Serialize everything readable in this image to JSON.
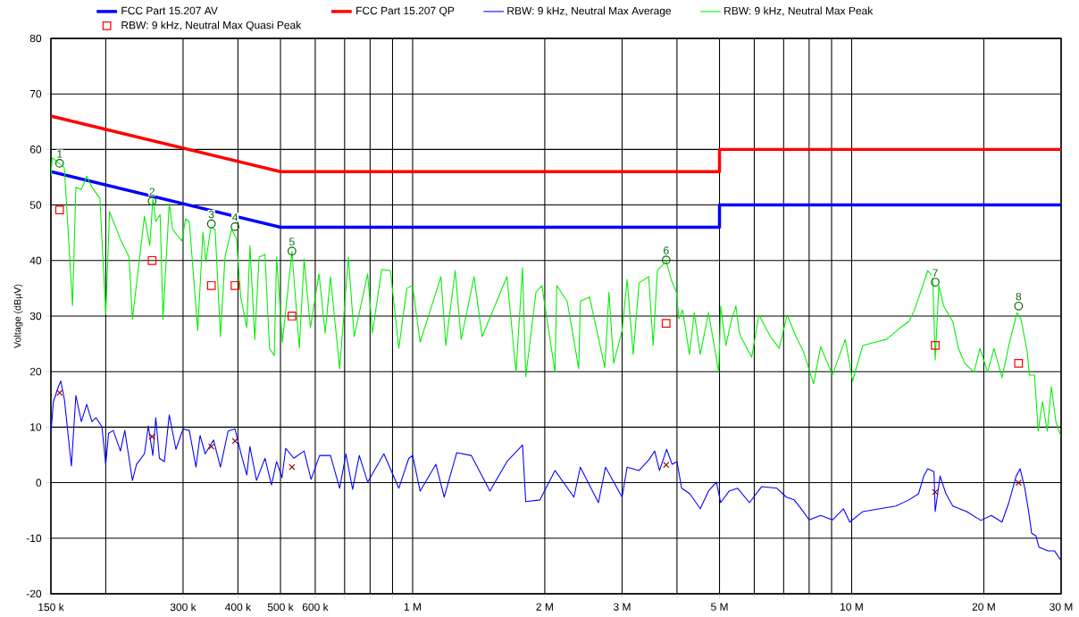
{
  "chart_data": {
    "type": "line",
    "ylabel": "Voltage (dBµV)",
    "log": "x",
    "grid": true,
    "legend": "top left",
    "xlim": [
      0.15,
      30
    ],
    "ylim": [
      -20,
      80
    ],
    "xticks": [
      {
        "value": 0.15,
        "label": "150 k"
      },
      {
        "value": 0.2,
        "label": null
      },
      {
        "value": 0.3,
        "label": "300 k"
      },
      {
        "value": 0.4,
        "label": "400 k"
      },
      {
        "value": 0.5,
        "label": "500 k"
      },
      {
        "value": 0.6,
        "label": "600 k"
      },
      {
        "value": 0.7,
        "label": null
      },
      {
        "value": 0.8,
        "label": null
      },
      {
        "value": 0.9,
        "label": null
      },
      {
        "value": 1,
        "label": "1 M"
      },
      {
        "value": 2,
        "label": "2 M"
      },
      {
        "value": 3,
        "label": "3 M"
      },
      {
        "value": 4,
        "label": null
      },
      {
        "value": 5,
        "label": "5 M"
      },
      {
        "value": 6,
        "label": null
      },
      {
        "value": 7,
        "label": null
      },
      {
        "value": 8,
        "label": null
      },
      {
        "value": 9,
        "label": null
      },
      {
        "value": 10,
        "label": "10 M"
      },
      {
        "value": 20,
        "label": "20 M"
      },
      {
        "value": 30,
        "label": "30 M"
      }
    ],
    "yticks": [
      -20,
      -10,
      0,
      10,
      20,
      30,
      40,
      50,
      60,
      70,
      80
    ],
    "series": [
      {
        "name": "FCC Part 15.207 AV",
        "color": "#0000ff",
        "x": [
          0.15,
          0.5,
          5,
          5,
          30
        ],
        "values": [
          56,
          46,
          46,
          50,
          50
        ]
      },
      {
        "name": "FCC Part 15.207 QP",
        "color": "#ff0000",
        "x": [
          0.15,
          0.5,
          5,
          5,
          30
        ],
        "values": [
          66,
          56,
          56,
          60,
          60
        ]
      },
      {
        "name": "RBW: 9 kHz, Neutral Max Average",
        "color": "#0000ff",
        "x": [
          0.15,
          0.152,
          0.156,
          0.158,
          0.161,
          0.167,
          0.171,
          0.176,
          0.181,
          0.186,
          0.19,
          0.196,
          0.2,
          0.203,
          0.208,
          0.216,
          0.221,
          0.23,
          0.235,
          0.245,
          0.25,
          0.256,
          0.26,
          0.265,
          0.272,
          0.279,
          0.289,
          0.3,
          0.31,
          0.321,
          0.328,
          0.337,
          0.352,
          0.365,
          0.38,
          0.394,
          0.406,
          0.419,
          0.426,
          0.441,
          0.461,
          0.477,
          0.49,
          0.504,
          0.514,
          0.536,
          0.566,
          0.587,
          0.614,
          0.65,
          0.682,
          0.705,
          0.73,
          0.756,
          0.79,
          0.86,
          0.93,
          0.98,
          1.0,
          1.04,
          1.13,
          1.18,
          1.26,
          1.36,
          1.5,
          1.64,
          1.78,
          1.81,
          1.95,
          2.11,
          2.33,
          2.41,
          2.65,
          2.75,
          3.0,
          3.08,
          3.28,
          3.45,
          3.56,
          3.65,
          3.79,
          3.9,
          4.0,
          4.1,
          4.28,
          4.52,
          4.72,
          4.92,
          5.03,
          5.26,
          5.5,
          5.85,
          6.24,
          6.76,
          7.1,
          7.4,
          7.76,
          8.0,
          8.5,
          9.04,
          9.58,
          9.9,
          10.6,
          11.6,
          12.6,
          13.5,
          14.2,
          14.6,
          14.9,
          15.4,
          15.5,
          15.9,
          16.4,
          17.0,
          18.3,
          19.7,
          20.8,
          22.0,
          22.8,
          23.7,
          24.2,
          24.8,
          25.3,
          25.7,
          26.3,
          26.7,
          28.0,
          29.0,
          29.9
        ],
        "values": [
          8.9,
          14.6,
          17.3,
          18.3,
          15.0,
          3.0,
          15.7,
          11.0,
          14.1,
          11.0,
          11.7,
          10.1,
          3.3,
          8.9,
          9.4,
          5.7,
          9.4,
          0.4,
          3.3,
          5.2,
          10.2,
          4.9,
          11.7,
          4.4,
          3.8,
          12.2,
          6.0,
          9.7,
          9.4,
          2.8,
          8.5,
          5.2,
          7.7,
          2.8,
          9.3,
          9.7,
          5.4,
          1.4,
          6.5,
          0.4,
          4.4,
          -0.4,
          3.8,
          0.9,
          6.2,
          4.4,
          5.7,
          0.6,
          4.9,
          4.9,
          -1.0,
          5.2,
          -1.2,
          4.9,
          0.1,
          5.2,
          -1.0,
          4.4,
          4.9,
          -1.5,
          3.3,
          -2.6,
          5.4,
          4.9,
          -1.5,
          3.8,
          6.8,
          -3.4,
          -3.1,
          2.2,
          -2.6,
          2.8,
          -3.6,
          2.8,
          -2.6,
          2.8,
          2.2,
          4.1,
          5.7,
          2.2,
          6.0,
          3.3,
          3.8,
          -1.0,
          -2.0,
          -4.7,
          -1.5,
          0.1,
          -3.6,
          -1.5,
          -1.0,
          -3.6,
          -0.7,
          -1.0,
          -2.6,
          -3.1,
          -5.2,
          -6.7,
          -5.9,
          -6.7,
          -4.7,
          -7.1,
          -5.2,
          -4.7,
          -4.2,
          -3.1,
          -2.0,
          1.2,
          2.5,
          2.0,
          -5.2,
          1.2,
          -2.0,
          -4.2,
          -5.2,
          -6.8,
          -5.9,
          -7.1,
          -3.6,
          1.2,
          2.5,
          -1.0,
          -5.2,
          -9.1,
          -9.6,
          -11.6,
          -12.3,
          -12.3,
          -13.9
        ]
      },
      {
        "name": "RBW: 9 kHz, Neutral Max Peak",
        "color": "#00ee00",
        "x": [
          0.15,
          0.151,
          0.161,
          0.168,
          0.171,
          0.176,
          0.181,
          0.186,
          0.194,
          0.2,
          0.204,
          0.216,
          0.226,
          0.23,
          0.245,
          0.252,
          0.256,
          0.26,
          0.266,
          0.27,
          0.279,
          0.284,
          0.298,
          0.304,
          0.31,
          0.324,
          0.333,
          0.338,
          0.347,
          0.355,
          0.365,
          0.374,
          0.387,
          0.397,
          0.406,
          0.419,
          0.426,
          0.437,
          0.447,
          0.461,
          0.472,
          0.484,
          0.49,
          0.505,
          0.531,
          0.552,
          0.566,
          0.585,
          0.612,
          0.632,
          0.65,
          0.682,
          0.714,
          0.736,
          0.79,
          0.81,
          0.85,
          0.89,
          0.93,
          0.97,
          1.0,
          1.04,
          1.16,
          1.19,
          1.25,
          1.29,
          1.38,
          1.44,
          1.64,
          1.72,
          1.78,
          1.81,
          1.91,
          1.97,
          2.11,
          2.13,
          2.25,
          2.39,
          2.41,
          2.53,
          2.74,
          2.8,
          2.87,
          3.0,
          3.08,
          3.18,
          3.28,
          3.45,
          3.53,
          3.61,
          3.71,
          3.78,
          3.88,
          3.99,
          4.04,
          4.12,
          4.27,
          4.38,
          4.52,
          4.72,
          4.98,
          5.03,
          5.17,
          5.33,
          5.45,
          5.54,
          5.59,
          5.92,
          6.15,
          6.53,
          6.84,
          7.13,
          7.47,
          7.76,
          8.19,
          8.5,
          9.04,
          9.67,
          10.05,
          10.6,
          11.3,
          12.0,
          12.9,
          13.5,
          13.9,
          14.6,
          14.9,
          15.3,
          15.5,
          15.8,
          16.2,
          17.0,
          17.5,
          18.1,
          19.0,
          19.6,
          20.4,
          21.1,
          22.0,
          22.8,
          23.8,
          24.3,
          25.1,
          25.4,
          26.1,
          26.6,
          27.2,
          27.9,
          28.5,
          29.2,
          29.9
        ],
        "values": [
          55.2,
          58.5,
          56.7,
          31.9,
          53.2,
          52.8,
          55.2,
          53.2,
          51.2,
          30.3,
          48.8,
          43.8,
          40.6,
          29.4,
          48.0,
          42.7,
          51.1,
          47.0,
          48.3,
          29.4,
          50.3,
          45.6,
          43.5,
          47.5,
          47.0,
          27.4,
          45.1,
          39.8,
          45.9,
          45.6,
          26.3,
          40.8,
          45.6,
          44.0,
          33.4,
          27.9,
          42.7,
          25.8,
          40.6,
          41.1,
          24.2,
          22.9,
          40.6,
          25.3,
          41.6,
          24.2,
          40.3,
          27.9,
          37.6,
          26.9,
          37.1,
          20.5,
          40.6,
          26.3,
          37.6,
          26.9,
          38.4,
          38.2,
          24.2,
          35.0,
          35.5,
          25.3,
          37.1,
          24.7,
          38.2,
          25.8,
          37.1,
          26.3,
          37.1,
          19.9,
          38.7,
          19.1,
          34.3,
          35.5,
          19.9,
          35.5,
          32.6,
          20.5,
          32.7,
          33.4,
          20.7,
          34.3,
          21.5,
          27.4,
          36.6,
          23.1,
          36.0,
          37.1,
          24.7,
          38.2,
          39.2,
          40.0,
          36.6,
          34.3,
          29.5,
          31.1,
          23.1,
          30.6,
          23.1,
          30.6,
          19.9,
          31.8,
          24.7,
          29.5,
          31.8,
          27.4,
          26.3,
          22.6,
          30.2,
          26.3,
          24.2,
          30.2,
          26.3,
          23.7,
          17.8,
          24.5,
          19.4,
          25.8,
          18.3,
          24.7,
          25.3,
          25.8,
          27.9,
          29.0,
          31.1,
          36.0,
          38.2,
          37.1,
          22.1,
          35.5,
          31.8,
          29.0,
          24.2,
          21.5,
          19.9,
          24.2,
          19.9,
          24.2,
          18.9,
          24.7,
          30.6,
          29.5,
          23.7,
          19.4,
          19.4,
          9.3,
          14.6,
          9.3,
          17.3,
          10.9,
          8.6
        ]
      },
      {
        "name": "RBW: 9 kHz, Neutral Max Quasi Peak",
        "type": "scatter",
        "marker": "square",
        "color": "#ff0000",
        "x": [
          0.157,
          0.255,
          0.348,
          0.394,
          0.531,
          3.78,
          15.5,
          24.0
        ],
        "values": [
          49.1,
          40.0,
          35.5,
          35.5,
          30.0,
          28.7,
          24.7,
          21.5
        ]
      },
      {
        "type": "scatter",
        "marker": "cross",
        "color": "#8b0000",
        "x": [
          0.157,
          0.255,
          0.348,
          0.394,
          0.531,
          3.78,
          15.5,
          24.0
        ],
        "values": [
          16.2,
          8.3,
          6.5,
          7.5,
          2.8,
          3.2,
          -1.7,
          0.0
        ]
      },
      {
        "type": "scatter",
        "marker": "circle",
        "color": "#006400",
        "x": [
          0.157,
          0.255,
          0.348,
          0.394,
          0.531,
          3.78,
          15.5,
          24.0
        ],
        "values": [
          57.5,
          50.7,
          46.6,
          46.1,
          41.7,
          40.1,
          36.1,
          31.8
        ]
      }
    ],
    "annotations": [
      {
        "text": "1",
        "x": 0.157,
        "y": 57.5
      },
      {
        "text": "2",
        "x": 0.255,
        "y": 50.7
      },
      {
        "text": "3",
        "x": 0.348,
        "y": 46.6
      },
      {
        "text": "4",
        "x": 0.394,
        "y": 46.1
      },
      {
        "text": "5",
        "x": 0.531,
        "y": 41.7
      },
      {
        "text": "6",
        "x": 3.78,
        "y": 40.1
      },
      {
        "text": "7",
        "x": 15.5,
        "y": 36.1
      },
      {
        "text": "8",
        "x": 24.0,
        "y": 31.8
      }
    ]
  }
}
